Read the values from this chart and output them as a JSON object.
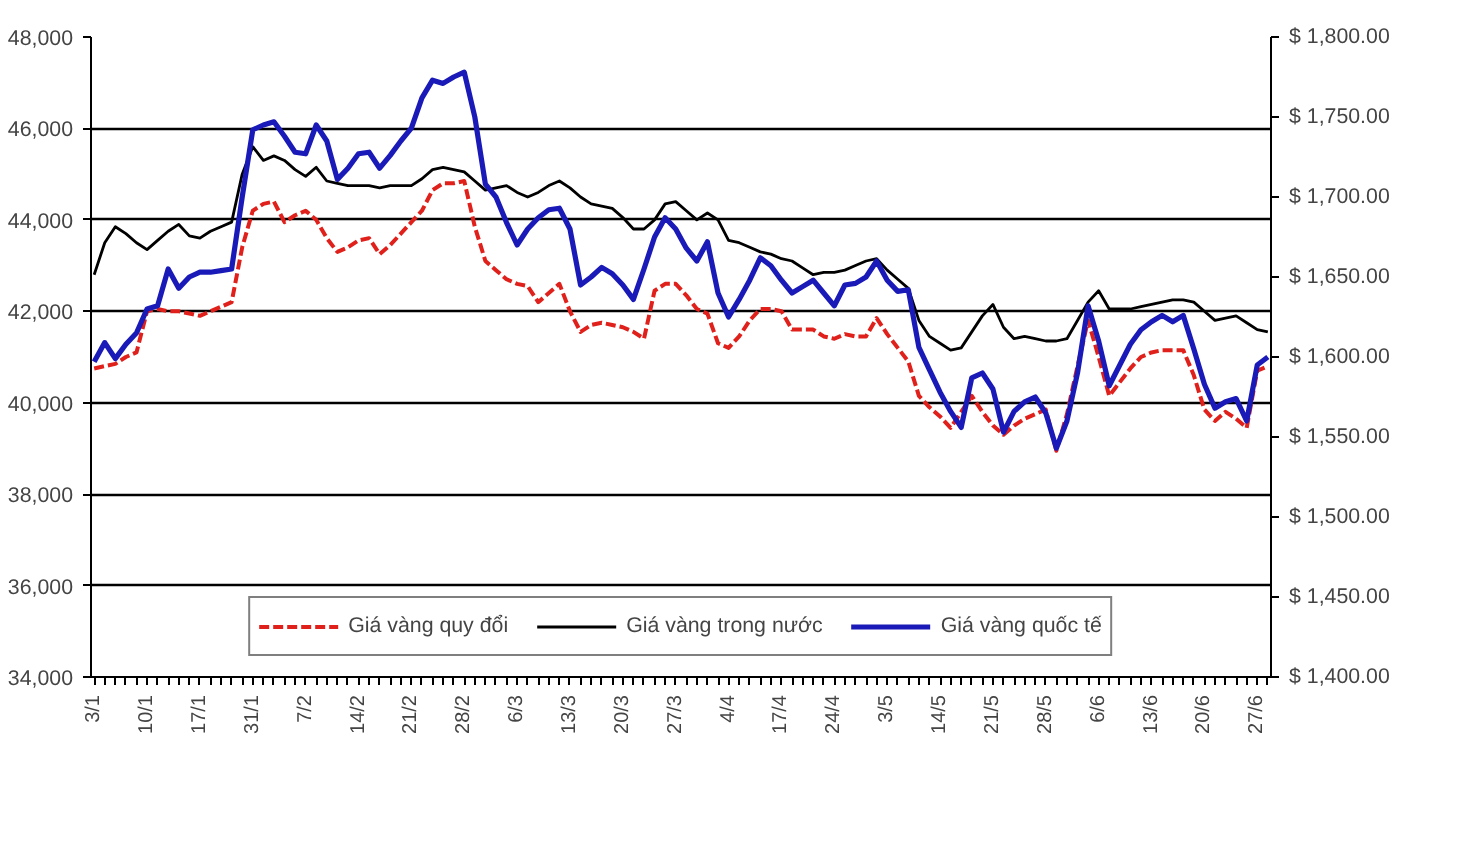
{
  "chart_data": {
    "type": "line",
    "categories": [
      "3/1",
      null,
      null,
      null,
      null,
      "10/1",
      null,
      null,
      null,
      null,
      "17/1",
      null,
      null,
      null,
      null,
      "31/1",
      null,
      null,
      null,
      null,
      "7/2",
      null,
      null,
      null,
      null,
      "14/2",
      null,
      null,
      null,
      null,
      "21/2",
      null,
      null,
      null,
      null,
      "28/2",
      null,
      null,
      null,
      null,
      "6/3",
      null,
      null,
      null,
      null,
      "13/3",
      null,
      null,
      null,
      null,
      "20/3",
      null,
      null,
      null,
      null,
      "27/3",
      null,
      null,
      null,
      null,
      "4/4",
      null,
      null,
      null,
      null,
      "17/4",
      null,
      null,
      null,
      null,
      "24/4",
      null,
      null,
      null,
      null,
      "3/5",
      null,
      null,
      null,
      null,
      "14/5",
      null,
      null,
      null,
      null,
      "21/5",
      null,
      null,
      null,
      null,
      "28/5",
      null,
      null,
      null,
      null,
      "6/6",
      null,
      null,
      null,
      null,
      "13/6",
      null,
      null,
      null,
      null,
      "20/6",
      null,
      null,
      null,
      null,
      "27/6",
      null
    ],
    "ylim": [
      34000,
      48000
    ],
    "yticks": [
      {
        "value": 34000,
        "label": "34,000"
      },
      {
        "value": 36000,
        "label": "36,000"
      },
      {
        "value": 38000,
        "label": "38,000"
      },
      {
        "value": 40000,
        "label": "40,000"
      },
      {
        "value": 42000,
        "label": "42,000"
      },
      {
        "value": 44000,
        "label": "44,000"
      },
      {
        "value": 46000,
        "label": "46,000"
      },
      {
        "value": 48000,
        "label": "48,000"
      }
    ],
    "y2lim": [
      1400,
      1800
    ],
    "y2ticks": [
      {
        "value": 1400,
        "label": "$ 1,400.00"
      },
      {
        "value": 1450,
        "label": "$ 1,450.00"
      },
      {
        "value": 1500,
        "label": "$ 1,500.00"
      },
      {
        "value": 1550,
        "label": "$ 1,550.00"
      },
      {
        "value": 1600,
        "label": "$ 1,600.00"
      },
      {
        "value": 1650,
        "label": "$ 1,650.00"
      },
      {
        "value": 1700,
        "label": "$ 1,700.00"
      },
      {
        "value": 1750,
        "label": "$ 1,750.00"
      },
      {
        "value": 1800,
        "label": "$ 1,800.00"
      }
    ],
    "grid": "y",
    "legend": "bottom",
    "marker": "none",
    "series": [
      {
        "name": "Giá vàng quy đổi",
        "color": "#e0201b",
        "line_style": "dashed",
        "values": [
          40750,
          40800,
          40850,
          41000,
          41100,
          42000,
          42050,
          42000,
          42000,
          41950,
          41900,
          42000,
          42100,
          42200,
          43400,
          44200,
          44350,
          44400,
          43950,
          44100,
          44200,
          44000,
          43600,
          43300,
          43400,
          43550,
          43600,
          43250,
          43450,
          43700,
          43950,
          44200,
          44650,
          44800,
          44800,
          44850,
          43850,
          43100,
          42900,
          42700,
          42600,
          42550,
          42200,
          42400,
          42600,
          42000,
          41550,
          41700,
          41750,
          41700,
          41650,
          41550,
          41400,
          42450,
          42600,
          42600,
          42350,
          42050,
          41950,
          41300,
          41200,
          41450,
          41800,
          42050,
          42050,
          42000,
          41600,
          41600,
          41600,
          41450,
          41400,
          41500,
          41450,
          41450,
          41850,
          41500,
          41200,
          40900,
          40150,
          39900,
          39700,
          39450,
          39800,
          40150,
          39800,
          39500,
          39300,
          39500,
          39650,
          39750,
          39850,
          38950,
          39750,
          40800,
          41800,
          41000,
          40150,
          40450,
          40750,
          41000,
          41100,
          41150,
          41150,
          41150,
          40600,
          39850,
          39600,
          39800,
          39650,
          39450,
          40700,
          40800
        ]
      },
      {
        "name": "Giá vàng trong nước",
        "color": "#000000",
        "line_style": "solid",
        "values": [
          42800,
          43500,
          43850,
          43700,
          43500,
          43350,
          43550,
          43750,
          43900,
          43650,
          43600,
          43750,
          43850,
          43950,
          45000,
          45600,
          45300,
          45400,
          45300,
          45100,
          44950,
          45150,
          44850,
          44800,
          44750,
          44750,
          44750,
          44700,
          44750,
          44750,
          44750,
          44900,
          45100,
          45150,
          45100,
          45050,
          44850,
          44650,
          44700,
          44750,
          44600,
          44500,
          44600,
          44750,
          44850,
          44700,
          44500,
          44350,
          44300,
          44250,
          44050,
          43800,
          43800,
          44000,
          44350,
          44400,
          44200,
          44000,
          44150,
          44000,
          43550,
          43500,
          43400,
          43300,
          43250,
          43150,
          43100,
          42950,
          42800,
          42850,
          42850,
          42900,
          43000,
          43100,
          43150,
          42900,
          42700,
          42500,
          41800,
          41450,
          41300,
          41150,
          41200,
          41550,
          41900,
          42150,
          41650,
          41400,
          41450,
          41400,
          41350,
          41350,
          41400,
          41800,
          42200,
          42450,
          42050,
          42050,
          42050,
          42100,
          42150,
          42200,
          42250,
          42250,
          42200,
          42000,
          41800,
          41850,
          41900,
          41750,
          41600,
          41550
        ]
      },
      {
        "name": "Giá vàng quốc tế",
        "color": "#1a1ab8",
        "line_style": "solid",
        "axis": "y2",
        "values": [
          1597,
          1609,
          1599,
          1608,
          1615,
          1630,
          1632,
          1655,
          1643,
          1650,
          1653,
          1653,
          1654,
          1655,
          1700,
          1742,
          1745,
          1747,
          1738,
          1728,
          1727,
          1745,
          1735,
          1711,
          1718,
          1727,
          1728,
          1718,
          1726,
          1735,
          1743,
          1762,
          1773,
          1771,
          1775,
          1778,
          1750,
          1708,
          1700,
          1684,
          1670,
          1680,
          1687,
          1692,
          1693,
          1680,
          1645,
          1650,
          1656,
          1652,
          1645,
          1636,
          1655,
          1675,
          1687,
          1680,
          1668,
          1660,
          1672,
          1640,
          1625,
          1636,
          1648,
          1662,
          1657,
          1648,
          1640,
          1644,
          1648,
          1640,
          1632,
          1645,
          1646,
          1650,
          1660,
          1648,
          1641,
          1642,
          1606,
          1592,
          1578,
          1566,
          1556,
          1587,
          1590,
          1580,
          1553,
          1566,
          1572,
          1575,
          1565,
          1543,
          1560,
          1590,
          1632,
          1610,
          1582,
          1595,
          1608,
          1617,
          1622,
          1626,
          1622,
          1626,
          1605,
          1583,
          1568,
          1572,
          1574,
          1560,
          1595,
          1600
        ]
      }
    ]
  }
}
